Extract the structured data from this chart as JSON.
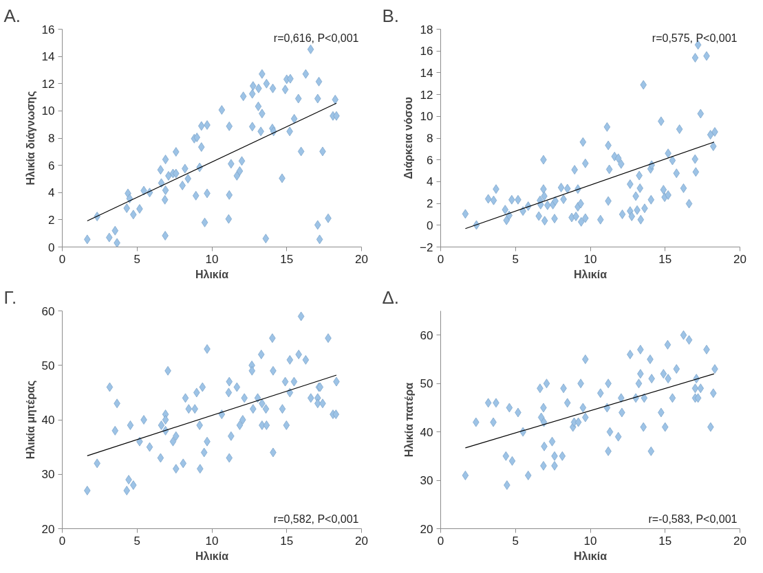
{
  "chart_data": [
    {
      "type": "scatter",
      "title": "A.",
      "xlabel": "Ηλικία",
      "ylabel": "Ηλικία διάγνωσης",
      "xlim": [
        0,
        20
      ],
      "xticks": [
        0,
        5,
        10,
        15,
        20
      ],
      "ylim": [
        0,
        16
      ],
      "yticks": [
        0,
        2,
        4,
        6,
        8,
        10,
        12,
        14,
        16
      ],
      "grid": false,
      "marker": "diamond",
      "annotations": [
        "r=0,616, P<0,001"
      ],
      "series": [
        {
          "color": "#9dc3e6",
          "x": [
            1.67,
            2.33,
            3.14,
            3.53,
            3.66,
            4.39,
            4.31,
            4.5,
            4.75,
            5.17,
            5.45,
            5.84,
            6.57,
            6.62,
            6.9,
            6.9,
            6.86,
            6.88,
            7.1,
            7.4,
            7.6,
            7.6,
            8.03,
            8.2,
            8.4,
            8.82,
            9.0,
            8.93,
            9.18,
            9.3,
            9.3,
            9.68,
            9.68,
            9.52,
            10.66,
            11.16,
            11.16,
            11.12,
            11.28,
            11.67,
            11.86,
            12.0,
            12.1,
            12.7,
            12.75,
            12.7,
            13.12,
            13.1,
            13.35,
            13.27,
            13.35,
            13.65,
            13.6,
            14.07,
            14.04,
            14.12,
            14.69,
            14.9,
            15.0,
            15.24,
            15.2,
            15.5,
            15.78,
            15.96,
            16.27,
            16.6,
            17.07,
            17.15,
            17.07,
            17.2,
            17.4,
            17.77,
            18.09,
            18.32,
            18.24
          ],
          "values": [
            0.56,
            2.24,
            0.7,
            1.2,
            0.3,
            3.94,
            2.85,
            3.56,
            2.38,
            2.8,
            4.14,
            4.0,
            5.67,
            4.7,
            6.43,
            4.17,
            3.47,
            0.83,
            5.23,
            5.4,
            6.99,
            5.4,
            4.52,
            5.76,
            5.02,
            7.96,
            8.05,
            3.77,
            5.85,
            7.34,
            8.89,
            8.96,
            3.94,
            1.8,
            10.07,
            8.87,
            3.82,
            2.06,
            6.11,
            5.23,
            5.58,
            6.32,
            11.07,
            11.25,
            11.83,
            8.84,
            11.65,
            10.33,
            9.8,
            8.49,
            12.71,
            12.0,
            0.62,
            11.65,
            8.71,
            8.49,
            5.05,
            11.57,
            12.32,
            12.36,
            8.49,
            9.42,
            10.9,
            7.02,
            12.71,
            14.52,
            10.9,
            12.15,
            1.62,
            0.56,
            7.02,
            2.11,
            9.63,
            9.63,
            10.83
          ]
        },
        {
          "type": "line",
          "color": "#000000",
          "marker": "none",
          "x": [
            1.67,
            18.32
          ],
          "values": [
            1.92,
            10.56
          ]
        }
      ]
    },
    {
      "type": "scatter",
      "title": "B.",
      "xlabel": "Ηλικία",
      "ylabel": "Διάρκεια νόσου",
      "xlim": [
        0,
        20
      ],
      "xticks": [
        0,
        5,
        10,
        15,
        20
      ],
      "ylim": [
        -2,
        18
      ],
      "yticks": [
        -2,
        0,
        2,
        4,
        6,
        8,
        10,
        12,
        14,
        16,
        18
      ],
      "grid": false,
      "marker": "diamond",
      "annotations": [
        "r=0,575, P<0,001"
      ],
      "series": [
        {
          "color": "#9dc3e6",
          "x": [
            1.65,
            2.39,
            3.18,
            3.54,
            3.7,
            4.31,
            4.4,
            4.58,
            4.75,
            5.17,
            5.5,
            5.85,
            6.56,
            6.64,
            6.68,
            6.87,
            6.87,
            6.92,
            6.95,
            7.14,
            7.5,
            7.66,
            7.61,
            8.05,
            8.21,
            8.47,
            8.76,
            8.95,
            9.04,
            9.17,
            9.17,
            9.36,
            9.39,
            9.51,
            9.67,
            9.67,
            10.68,
            11.12,
            11.2,
            11.2,
            11.27,
            11.62,
            11.87,
            12.06,
            12.14,
            12.66,
            12.66,
            12.77,
            13.04,
            13.13,
            13.27,
            13.32,
            13.37,
            13.55,
            13.63,
            14.03,
            14.1,
            14.06,
            14.73,
            14.89,
            14.97,
            15.2,
            15.2,
            15.49,
            15.76,
            15.96,
            16.23,
            16.6,
            17.0,
            17.05,
            17.01,
            17.2,
            17.37,
            17.77,
            18.03,
            18.32,
            18.22
          ],
          "values": [
            1.04,
            0.02,
            2.42,
            2.28,
            3.32,
            1.43,
            0.45,
            0.9,
            2.34,
            2.34,
            1.3,
            1.75,
            0.84,
            2.28,
            1.89,
            3.32,
            6.01,
            2.67,
            0.41,
            1.83,
            1.89,
            2.22,
            0.61,
            3.46,
            2.38,
            3.36,
            0.71,
            5.09,
            0.81,
            3.32,
            1.69,
            1.98,
            0.31,
            7.64,
            5.68,
            0.65,
            0.51,
            9.02,
            7.33,
            2.22,
            5.13,
            6.31,
            6.15,
            5.62,
            1.0,
            3.77,
            1.3,
            0.81,
            2.67,
            1.39,
            4.56,
            3.4,
            0.51,
            12.89,
            1.55,
            5.17,
            5.52,
            2.34,
            9.55,
            3.26,
            2.57,
            2.77,
            6.6,
            5.95,
            4.77,
            8.82,
            3.4,
            1.98,
            6.07,
            4.89,
            15.38,
            16.56,
            10.24,
            15.54,
            8.31,
            8.57,
            7.25
          ]
        },
        {
          "type": "line",
          "color": "#000000",
          "marker": "none",
          "x": [
            1.65,
            18.27
          ],
          "values": [
            -0.31,
            7.64
          ]
        }
      ]
    },
    {
      "type": "scatter",
      "title": "Γ.",
      "xlabel": "Ηλικία",
      "ylabel": "Ηλικία μητέρας",
      "xlim": [
        0,
        20
      ],
      "xticks": [
        0,
        5,
        10,
        15,
        20
      ],
      "ylim": [
        20,
        60
      ],
      "yticks": [
        20,
        30,
        40,
        50,
        60
      ],
      "grid": false,
      "marker": "diamond",
      "annotations": [
        "r=0,582, P<0,001"
      ],
      "series": [
        {
          "color": "#9dc3e6",
          "x": [
            1.67,
            2.33,
            3.17,
            3.53,
            3.66,
            4.31,
            4.44,
            4.75,
            4.55,
            5.17,
            5.45,
            5.84,
            6.57,
            6.62,
            6.9,
            6.9,
            6.9,
            7.06,
            7.4,
            7.6,
            7.6,
            8.08,
            8.23,
            8.45,
            8.86,
            8.98,
            9.18,
            9.21,
            9.37,
            9.48,
            9.68,
            9.68,
            10.66,
            11.16,
            11.12,
            11.28,
            11.16,
            11.67,
            11.86,
            12.06,
            12.17,
            12.67,
            12.68,
            12.75,
            13.06,
            13.3,
            13.35,
            13.35,
            13.61,
            13.65,
            14.04,
            14.09,
            14.09,
            14.71,
            14.9,
            14.98,
            15.21,
            15.21,
            15.49,
            15.8,
            15.96,
            16.27,
            16.61,
            17.07,
            17.15,
            17.23,
            17.07,
            17.4,
            17.77,
            18.09,
            18.29,
            18.32
          ],
          "values": [
            27,
            32,
            46,
            38,
            43,
            27,
            29,
            28,
            39,
            36,
            40,
            35,
            33,
            39,
            41,
            40,
            38,
            49,
            36,
            37,
            31,
            32,
            44,
            42,
            42,
            45,
            39,
            31,
            46,
            34,
            36,
            53,
            41,
            47,
            45,
            37,
            33,
            46,
            39,
            40,
            44,
            50,
            49,
            42,
            44,
            52,
            43,
            39,
            42,
            39,
            55,
            49,
            34,
            42,
            47,
            39,
            51,
            45,
            47,
            52,
            59,
            51,
            44,
            44,
            46,
            46,
            43,
            43,
            55,
            41,
            41,
            47
          ]
        },
        {
          "type": "line",
          "color": "#000000",
          "marker": "none",
          "x": [
            1.67,
            18.32
          ],
          "values": [
            33.4,
            48.2
          ]
        }
      ]
    },
    {
      "type": "scatter",
      "title": "Δ.",
      "xlabel": "Ηλικία",
      "ylabel": "Ηλικία πατέρα",
      "xlim": [
        0,
        20
      ],
      "xticks": [
        0,
        5,
        10,
        15,
        20
      ],
      "ylim": [
        20,
        65
      ],
      "yticks": [
        20,
        30,
        40,
        50,
        60
      ],
      "grid": false,
      "marker": "diamond",
      "annotations": [
        "r=-0,583, P<0,001"
      ],
      "series": [
        {
          "color": "#9dc3e6",
          "x": [
            1.65,
            2.36,
            3.18,
            3.7,
            3.52,
            4.36,
            4.43,
            4.59,
            4.78,
            5.17,
            5.5,
            5.85,
            6.64,
            6.72,
            6.87,
            6.9,
            6.92,
            6.87,
            7.08,
            7.45,
            7.61,
            7.61,
            8.13,
            8.21,
            8.47,
            8.84,
            8.92,
            9.2,
            9.36,
            9.51,
            9.67,
            9.67,
            10.68,
            11.12,
            11.2,
            11.2,
            11.31,
            11.87,
            12.06,
            12.11,
            12.66,
            13.04,
            13.24,
            13.35,
            13.35,
            13.55,
            13.6,
            14.0,
            14.1,
            14.06,
            14.73,
            14.89,
            15.0,
            15.17,
            15.2,
            15.49,
            15.76,
            16.23,
            16.6,
            17.01,
            17.09,
            17.01,
            17.2,
            17.37,
            17.77,
            18.04,
            18.22,
            18.32
          ],
          "values": [
            31,
            42,
            46,
            46,
            42,
            35,
            29,
            45,
            34,
            44,
            40,
            31,
            49,
            43,
            45,
            42,
            37,
            33,
            50,
            38,
            35,
            33,
            35,
            49,
            46,
            41,
            42,
            42,
            50,
            45,
            43,
            55,
            48,
            45,
            50,
            36,
            40,
            39,
            47,
            44,
            56,
            47,
            50,
            52,
            57,
            41,
            47,
            55,
            51,
            36,
            44,
            52,
            41,
            58,
            51,
            47,
            53,
            60,
            59,
            47,
            51,
            49,
            47,
            49,
            57,
            41,
            48,
            53
          ]
        },
        {
          "type": "line",
          "color": "#000000",
          "marker": "none",
          "x": [
            1.65,
            18.27
          ],
          "values": [
            36.7,
            52.0
          ]
        }
      ]
    }
  ]
}
